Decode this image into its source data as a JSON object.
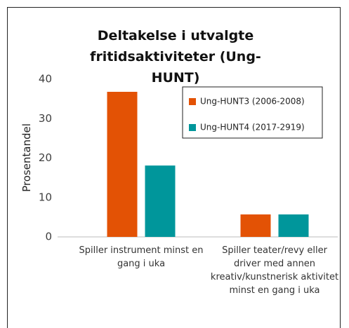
{
  "chart_data": {
    "type": "bar",
    "title": "Deltakelse i utvalgte fritidsaktiviteter (Ung-HUNT)",
    "y_label": "Prosentandel",
    "categories": [
      "Spiller instrument minst en gang i uka",
      "Spiller teater/revy eller driver med annen kreativ/kunstnerisk aktivitet minst en gang i uka"
    ],
    "series": [
      {
        "name": "Ung-HUNT3 (2006-2008)",
        "color": "#e35205",
        "values": [
          36.8,
          5.7
        ]
      },
      {
        "name": "Ung-HUNT4 (2017-2919)",
        "color": "#00969b",
        "values": [
          18.1,
          5.7
        ]
      }
    ],
    "ylim": [
      0,
      40
    ],
    "yticks": [
      0,
      10,
      20,
      30,
      40
    ],
    "grid": false,
    "legend": "upper right"
  }
}
